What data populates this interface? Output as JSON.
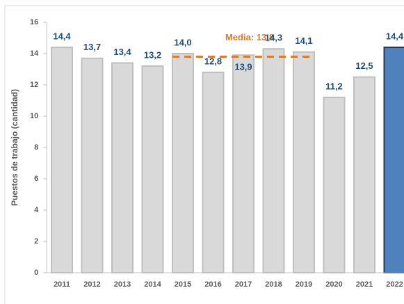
{
  "chart_data": {
    "type": "bar",
    "y_axis_label": "Puestos de trabajo (cantidad)",
    "categories": [
      "2011",
      "2012",
      "2013",
      "2014",
      "2015",
      "2016",
      "2017",
      "2018",
      "2019",
      "2020",
      "2021",
      "2022"
    ],
    "values": [
      14.4,
      13.7,
      13.4,
      13.2,
      14.0,
      12.8,
      13.9,
      14.3,
      14.1,
      11.2,
      12.5,
      14.4
    ],
    "value_labels": [
      "14,4",
      "13,7",
      "13,4",
      "13,2",
      "14,0",
      "12,8",
      "13,9",
      "14,3",
      "14,1",
      "11,2",
      "12,5",
      "14,4"
    ],
    "colors": [
      "#d9d9d9",
      "#d9d9d9",
      "#d9d9d9",
      "#d9d9d9",
      "#d9d9d9",
      "#d9d9d9",
      "#d9d9d9",
      "#d9d9d9",
      "#d9d9d9",
      "#d9d9d9",
      "#d9d9d9",
      "#4f81bd"
    ],
    "mean": {
      "value": 13.8,
      "label": "Media: 13,8",
      "from": "2015",
      "to": "2019",
      "color": "#e07b24"
    },
    "ylim": [
      0,
      16
    ],
    "yticks": [
      0,
      2,
      4,
      6,
      8,
      10,
      12,
      14,
      16
    ]
  }
}
